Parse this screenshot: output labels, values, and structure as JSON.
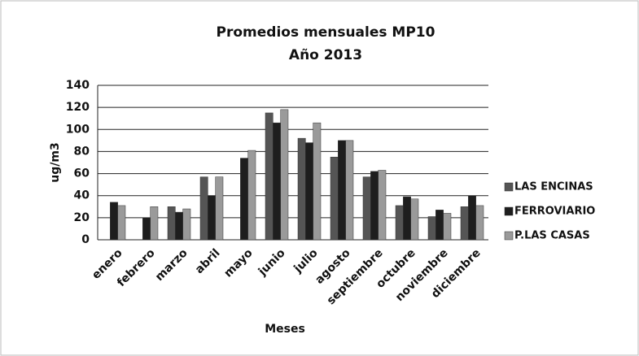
{
  "chart_data": {
    "type": "bar",
    "title": "Promedios mensuales MP10",
    "subtitle": "Año 2013",
    "x_label": "Meses",
    "y_label": "ug/m3",
    "categories": [
      "enero",
      "febrero",
      "marzo",
      "abril",
      "mayo",
      "junio",
      "julio",
      "agosto",
      "septiembre",
      "octubre",
      "noviembre",
      "diciembre"
    ],
    "series": [
      {
        "name": "LAS ENCINAS",
        "color": "#555555",
        "values": [
          null,
          null,
          30,
          57,
          null,
          115,
          92,
          75,
          57,
          31,
          21,
          30
        ]
      },
      {
        "name": "FERROVIARIO",
        "color": "#1e1e1e",
        "values": [
          34,
          20,
          25,
          40,
          74,
          106,
          88,
          90,
          62,
          39,
          27,
          40
        ]
      },
      {
        "name": "P.LAS CASAS",
        "color": "#9a9a9a",
        "values": [
          31,
          30,
          28,
          57,
          81,
          118,
          106,
          90,
          63,
          37,
          24,
          31
        ]
      }
    ],
    "ylim": [
      0,
      140
    ],
    "yticks": [
      0,
      20,
      40,
      60,
      80,
      100,
      120,
      140
    ],
    "grid": true,
    "legend": "right"
  }
}
